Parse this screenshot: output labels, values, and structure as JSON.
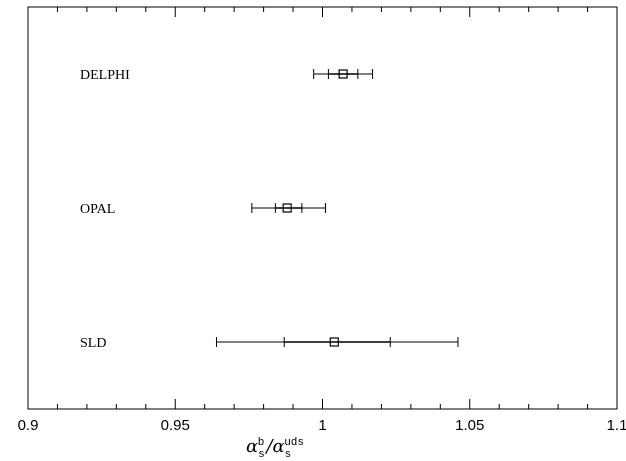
{
  "chart_data": {
    "type": "scatter",
    "title": "",
    "xlim": [
      0.9,
      1.1
    ],
    "xticks": [
      {
        "value": 0.9,
        "label": "0.9"
      },
      {
        "value": 0.95,
        "label": "0.95"
      },
      {
        "value": 1.0,
        "label": "1"
      },
      {
        "value": 1.05,
        "label": "1.05"
      },
      {
        "value": 1.1,
        "label": "1.1"
      }
    ],
    "xlabel": {
      "symbol": "α",
      "numerator_sub": "s",
      "numerator_sup": "b",
      "separator": "/",
      "denominator_sub": "s",
      "denominator_sup": "uds"
    },
    "ylabel": "",
    "grid": false,
    "legend": "none",
    "experiments": [
      {
        "name": "DELPHI",
        "value": 1.007,
        "stat_low": 1.002,
        "stat_high": 1.012,
        "tot_low": 0.997,
        "tot_high": 1.017
      },
      {
        "name": "OPAL",
        "value": 0.988,
        "stat_low": 0.984,
        "stat_high": 0.993,
        "tot_low": 0.976,
        "tot_high": 1.001
      },
      {
        "name": "SLD",
        "value": 1.004,
        "stat_low": 0.987,
        "stat_high": 1.023,
        "tot_low": 0.964,
        "tot_high": 1.046
      }
    ]
  }
}
